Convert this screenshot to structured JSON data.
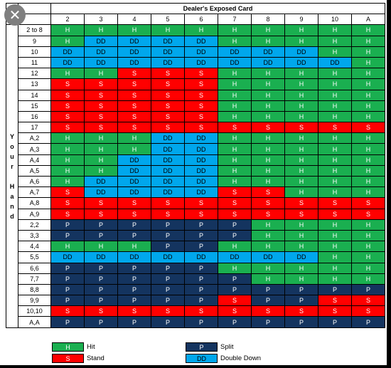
{
  "title": "Dealer's Exposed Card",
  "close_glyph": "✕",
  "dealer_cards": [
    "2",
    "3",
    "4",
    "5",
    "6",
    "7",
    "8",
    "9",
    "10",
    "A"
  ],
  "side_label": [
    "Y",
    "o",
    "u",
    "r",
    "",
    "H",
    "a",
    "n",
    "d"
  ],
  "colors": {
    "H": "#1aaf50",
    "S": "#ff0000",
    "DD": "#00a7ec",
    "P": "#14345f"
  },
  "rows": [
    {
      "hand": "2 to 8",
      "actions": [
        "H",
        "H",
        "H",
        "H",
        "H",
        "H",
        "H",
        "H",
        "H",
        "H"
      ]
    },
    {
      "hand": "9",
      "actions": [
        "H",
        "DD",
        "DD",
        "DD",
        "DD",
        "H",
        "H",
        "H",
        "H",
        "H"
      ]
    },
    {
      "hand": "10",
      "actions": [
        "DD",
        "DD",
        "DD",
        "DD",
        "DD",
        "DD",
        "DD",
        "DD",
        "H",
        "H"
      ]
    },
    {
      "hand": "11",
      "actions": [
        "DD",
        "DD",
        "DD",
        "DD",
        "DD",
        "DD",
        "DD",
        "DD",
        "DD",
        "H"
      ]
    },
    {
      "hand": "12",
      "actions": [
        "H",
        "H",
        "S",
        "S",
        "S",
        "H",
        "H",
        "H",
        "H",
        "H"
      ]
    },
    {
      "hand": "13",
      "actions": [
        "S",
        "S",
        "S",
        "S",
        "S",
        "H",
        "H",
        "H",
        "H",
        "H"
      ]
    },
    {
      "hand": "14",
      "actions": [
        "S",
        "S",
        "S",
        "S",
        "S",
        "H",
        "H",
        "H",
        "H",
        "H"
      ]
    },
    {
      "hand": "15",
      "actions": [
        "S",
        "S",
        "S",
        "S",
        "S",
        "H",
        "H",
        "H",
        "H",
        "H"
      ]
    },
    {
      "hand": "16",
      "actions": [
        "S",
        "S",
        "S",
        "S",
        "S",
        "H",
        "H",
        "H",
        "H",
        "H"
      ]
    },
    {
      "hand": "17",
      "actions": [
        "S",
        "S",
        "S",
        "S",
        "S",
        "S",
        "S",
        "S",
        "S",
        "S"
      ]
    },
    {
      "hand": "A,2",
      "actions": [
        "H",
        "H",
        "H",
        "DD",
        "DD",
        "H",
        "H",
        "H",
        "H",
        "H"
      ]
    },
    {
      "hand": "A,3",
      "actions": [
        "H",
        "H",
        "H",
        "DD",
        "DD",
        "H",
        "H",
        "H",
        "H",
        "H"
      ]
    },
    {
      "hand": "A,4",
      "actions": [
        "H",
        "H",
        "DD",
        "DD",
        "DD",
        "H",
        "H",
        "H",
        "H",
        "H"
      ]
    },
    {
      "hand": "A,5",
      "actions": [
        "H",
        "H",
        "DD",
        "DD",
        "DD",
        "H",
        "H",
        "H",
        "H",
        "H"
      ]
    },
    {
      "hand": "A,6",
      "actions": [
        "H",
        "DD",
        "DD",
        "DD",
        "DD",
        "H",
        "H",
        "H",
        "H",
        "H"
      ]
    },
    {
      "hand": "A,7",
      "actions": [
        "S",
        "DD",
        "DD",
        "DD",
        "DD",
        "S",
        "S",
        "H",
        "H",
        "H"
      ]
    },
    {
      "hand": "A,8",
      "actions": [
        "S",
        "S",
        "S",
        "S",
        "S",
        "S",
        "S",
        "S",
        "S",
        "S"
      ]
    },
    {
      "hand": "A,9",
      "actions": [
        "S",
        "S",
        "S",
        "S",
        "S",
        "S",
        "S",
        "S",
        "S",
        "S"
      ]
    },
    {
      "hand": "2,2",
      "actions": [
        "P",
        "P",
        "P",
        "P",
        "P",
        "P",
        "H",
        "H",
        "H",
        "H"
      ]
    },
    {
      "hand": "3,3",
      "actions": [
        "P",
        "P",
        "P",
        "P",
        "P",
        "P",
        "H",
        "H",
        "H",
        "H"
      ]
    },
    {
      "hand": "4,4",
      "actions": [
        "H",
        "H",
        "H",
        "P",
        "P",
        "H",
        "H",
        "H",
        "H",
        "H"
      ]
    },
    {
      "hand": "5,5",
      "actions": [
        "DD",
        "DD",
        "DD",
        "DD",
        "DD",
        "DD",
        "DD",
        "DD",
        "H",
        "H"
      ]
    },
    {
      "hand": "6,6",
      "actions": [
        "P",
        "P",
        "P",
        "P",
        "P",
        "H",
        "H",
        "H",
        "H",
        "H"
      ]
    },
    {
      "hand": "7,7",
      "actions": [
        "P",
        "P",
        "P",
        "P",
        "P",
        "P",
        "H",
        "H",
        "H",
        "H"
      ]
    },
    {
      "hand": "8,8",
      "actions": [
        "P",
        "P",
        "P",
        "P",
        "P",
        "P",
        "P",
        "P",
        "P",
        "P"
      ]
    },
    {
      "hand": "9,9",
      "actions": [
        "P",
        "P",
        "P",
        "P",
        "P",
        "S",
        "P",
        "P",
        "S",
        "S"
      ]
    },
    {
      "hand": "10,10",
      "actions": [
        "S",
        "S",
        "S",
        "S",
        "S",
        "S",
        "S",
        "S",
        "S",
        "S"
      ]
    },
    {
      "hand": "A,A",
      "actions": [
        "P",
        "P",
        "P",
        "P",
        "P",
        "P",
        "P",
        "P",
        "P",
        "P"
      ]
    }
  ],
  "legend": [
    {
      "code": "H",
      "label": "Hit"
    },
    {
      "code": "S",
      "label": "Stand"
    },
    {
      "code": "P",
      "label": "Split"
    },
    {
      "code": "DD",
      "label": "Double Down"
    }
  ]
}
